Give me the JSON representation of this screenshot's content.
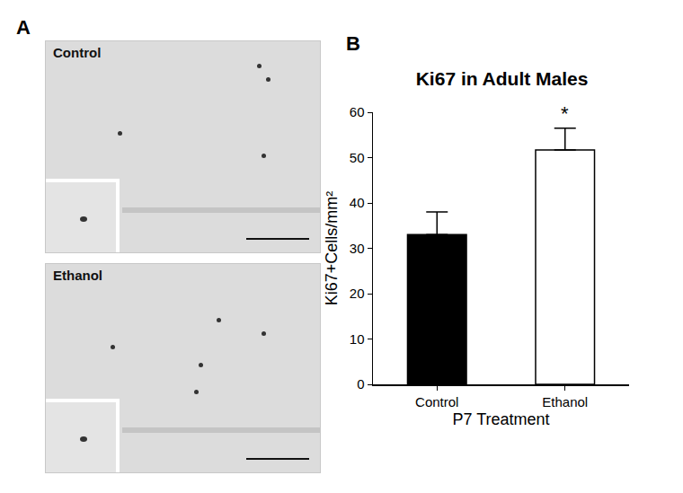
{
  "figure": {
    "panel_labels": [
      "A",
      "B"
    ],
    "micrographs": [
      {
        "label": "Control"
      },
      {
        "label": "Ethanol"
      }
    ]
  },
  "chart_data": {
    "type": "bar",
    "title": "Ki67 in Adult Males",
    "x_label": "P7 Treatment",
    "y_label": "Ki67+Cells/mm²",
    "categories": [
      "Control",
      "Ethanol"
    ],
    "values": [
      33,
      51.7
    ],
    "errors": [
      5,
      4.8
    ],
    "colors": [
      "#000000",
      "#ffffff"
    ],
    "ylim": [
      0,
      60
    ],
    "yticks": [
      0,
      10,
      20,
      30,
      40,
      50,
      60
    ],
    "grid": false,
    "annotations": [
      {
        "text": "*",
        "category": "Ethanol"
      }
    ]
  }
}
